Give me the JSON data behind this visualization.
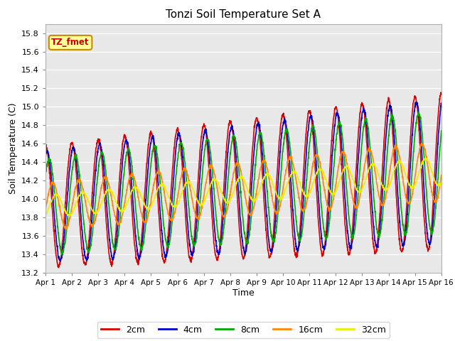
{
  "title": "Tonzi Soil Temperature Set A",
  "xlabel": "Time",
  "ylabel": "Soil Temperature (C)",
  "ylim": [
    13.2,
    15.9
  ],
  "xlim": [
    0,
    15
  ],
  "xtick_labels": [
    "Apr 1",
    "Apr 2",
    "Apr 3",
    "Apr 4",
    "Apr 5",
    "Apr 6",
    "Apr 7",
    "Apr 8",
    "Apr 9",
    "Apr 10",
    "Apr 11",
    "Apr 12",
    "Apr 13",
    "Apr 14",
    "Apr 15",
    "Apr 16"
  ],
  "ytick_values": [
    13.2,
    13.4,
    13.6,
    13.8,
    14.0,
    14.2,
    14.4,
    14.6,
    14.8,
    15.0,
    15.2,
    15.4,
    15.6,
    15.8
  ],
  "line_colors": [
    "#dd0000",
    "#0000cc",
    "#00aa00",
    "#ff8800",
    "#eeee00"
  ],
  "line_labels": [
    "2cm",
    "4cm",
    "8cm",
    "16cm",
    "32cm"
  ],
  "line_width": 1.2,
  "annotation_text": "TZ_fmet",
  "annotation_bg": "#ffff99",
  "annotation_border": "#cc8800",
  "fig_bg": "#ffffff",
  "plot_bg": "#e8e8e8",
  "n_points": 2000
}
